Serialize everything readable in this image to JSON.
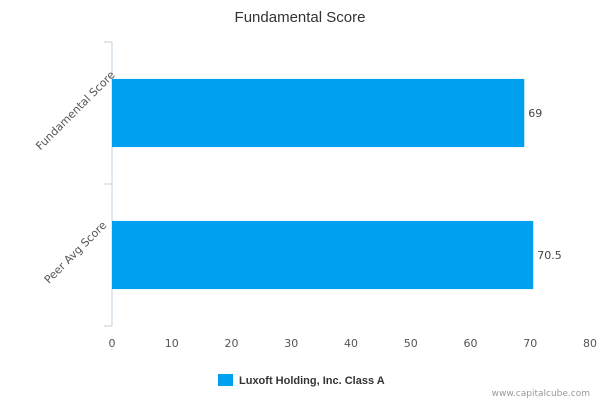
{
  "chart_data": {
    "type": "bar",
    "orientation": "horizontal",
    "title": "Fundamental Score",
    "categories": [
      "Fundamental Score",
      "Peer Avg Score"
    ],
    "series": [
      {
        "name": "Luxoft Holding, Inc. Class A",
        "values": [
          69,
          70.5
        ]
      }
    ],
    "data_labels": [
      "69",
      "70.5"
    ],
    "xlim": [
      0,
      80
    ],
    "x_ticks": [
      0,
      10,
      20,
      30,
      40,
      50,
      60,
      70,
      80
    ],
    "grid": false,
    "legend_position": "bottom-center",
    "colors": {
      "bar": "#00a0f0",
      "axis": "#c0d0e0"
    }
  },
  "credit": "www.capitalcube.com"
}
